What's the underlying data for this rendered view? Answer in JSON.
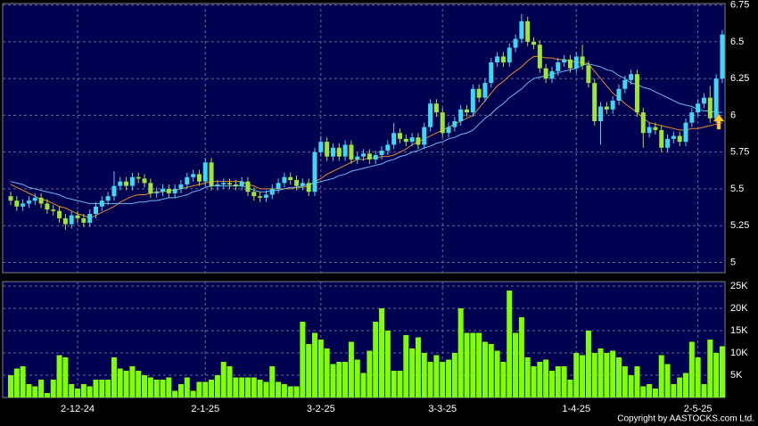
{
  "chart_data": [
    {
      "type": "candlestick",
      "open": [
        5.45,
        5.42,
        5.38,
        5.4,
        5.42,
        5.44,
        5.4,
        5.36,
        5.35,
        5.3,
        5.26,
        5.32,
        5.3,
        5.27,
        5.33,
        5.38,
        5.42,
        5.45,
        5.52,
        5.55,
        5.52,
        5.58,
        5.57,
        5.54,
        5.47,
        5.48,
        5.5,
        5.47,
        5.5,
        5.53,
        5.58,
        5.6,
        5.55,
        5.68,
        5.52,
        5.53,
        5.54,
        5.53,
        5.52,
        5.55,
        5.48,
        5.45,
        5.44,
        5.46,
        5.5,
        5.54,
        5.58,
        5.56,
        5.52,
        5.54,
        5.48,
        5.75,
        5.82,
        5.72,
        5.78,
        5.72,
        5.8,
        5.7,
        5.72,
        5.74,
        5.7,
        5.73,
        5.76,
        5.8,
        5.88,
        5.84,
        5.82,
        5.85,
        5.8,
        5.92,
        6.08,
        6.02,
        5.88,
        5.92,
        5.96,
        6.04,
        6.02,
        6.18,
        6.12,
        6.22,
        6.36,
        6.4,
        6.36,
        6.46,
        6.52,
        6.64,
        6.5,
        6.48,
        6.32,
        6.25,
        6.3,
        6.36,
        6.38,
        6.32,
        6.4,
        6.34,
        6.22,
        5.96,
        6.06,
        6.04,
        6.1,
        6.18,
        6.24,
        6.28,
        6.02,
        5.88,
        5.92,
        5.9,
        5.78,
        5.84,
        5.86,
        5.82,
        5.95,
        6.02,
        6.08,
        6.12,
        5.98,
        6.25
      ],
      "high": [
        5.48,
        5.45,
        5.43,
        5.45,
        5.47,
        5.47,
        5.43,
        5.39,
        5.38,
        5.33,
        5.35,
        5.35,
        5.33,
        5.36,
        5.41,
        5.45,
        5.48,
        5.62,
        5.58,
        5.58,
        5.61,
        5.61,
        5.6,
        5.57,
        5.51,
        5.53,
        5.53,
        5.53,
        5.56,
        5.61,
        5.63,
        5.63,
        5.71,
        5.71,
        5.56,
        5.57,
        5.57,
        5.56,
        5.58,
        5.58,
        5.51,
        5.48,
        5.49,
        5.53,
        5.57,
        5.61,
        5.61,
        5.59,
        5.57,
        5.57,
        5.78,
        5.86,
        5.85,
        5.81,
        5.81,
        5.83,
        5.83,
        5.75,
        5.77,
        5.77,
        5.76,
        5.79,
        5.83,
        5.95,
        5.91,
        5.87,
        5.88,
        5.88,
        5.95,
        6.11,
        6.11,
        6.05,
        5.95,
        5.99,
        6.07,
        6.07,
        6.21,
        6.21,
        6.25,
        6.39,
        6.43,
        6.43,
        6.49,
        6.55,
        6.69,
        6.67,
        6.53,
        6.51,
        6.35,
        6.33,
        6.39,
        6.41,
        6.41,
        6.43,
        6.48,
        6.37,
        6.25,
        6.09,
        6.09,
        6.13,
        6.21,
        6.27,
        6.31,
        6.31,
        6.05,
        5.95,
        5.95,
        5.93,
        5.87,
        5.89,
        5.89,
        5.98,
        6.05,
        6.11,
        6.15,
        6.2,
        6.28,
        6.58
      ],
      "low": [
        5.39,
        5.35,
        5.35,
        5.37,
        5.39,
        5.37,
        5.33,
        5.32,
        5.27,
        5.22,
        5.23,
        5.27,
        5.24,
        5.24,
        5.3,
        5.35,
        5.39,
        5.42,
        5.49,
        5.49,
        5.49,
        5.54,
        5.51,
        5.44,
        5.44,
        5.45,
        5.44,
        5.44,
        5.47,
        5.5,
        5.55,
        5.52,
        5.52,
        5.49,
        5.49,
        5.5,
        5.5,
        5.49,
        5.49,
        5.45,
        5.42,
        5.41,
        5.41,
        5.43,
        5.47,
        5.51,
        5.53,
        5.49,
        5.49,
        5.45,
        5.45,
        5.72,
        5.69,
        5.69,
        5.69,
        5.69,
        5.67,
        5.67,
        5.69,
        5.67,
        5.67,
        5.7,
        5.73,
        5.77,
        5.81,
        5.79,
        5.79,
        5.77,
        5.77,
        5.89,
        5.99,
        5.85,
        5.85,
        5.89,
        5.93,
        5.99,
        5.99,
        6.09,
        6.09,
        6.19,
        6.33,
        6.33,
        6.33,
        6.43,
        6.49,
        6.47,
        6.45,
        6.29,
        6.22,
        6.22,
        6.27,
        6.33,
        6.29,
        6.29,
        6.31,
        6.19,
        5.93,
        5.8,
        6.01,
        6.01,
        6.07,
        6.15,
        6.21,
        5.99,
        5.78,
        5.85,
        5.87,
        5.75,
        5.75,
        5.81,
        5.79,
        5.79,
        5.92,
        5.99,
        6.05,
        5.95,
        5.95,
        6.22
      ],
      "close": [
        5.42,
        5.38,
        5.4,
        5.42,
        5.44,
        5.4,
        5.36,
        5.35,
        5.3,
        5.26,
        5.32,
        5.3,
        5.27,
        5.33,
        5.38,
        5.42,
        5.45,
        5.52,
        5.55,
        5.52,
        5.58,
        5.57,
        5.54,
        5.47,
        5.48,
        5.5,
        5.47,
        5.5,
        5.53,
        5.58,
        5.6,
        5.55,
        5.68,
        5.52,
        5.53,
        5.54,
        5.53,
        5.52,
        5.55,
        5.48,
        5.45,
        5.44,
        5.46,
        5.5,
        5.54,
        5.58,
        5.56,
        5.52,
        5.54,
        5.48,
        5.75,
        5.82,
        5.72,
        5.78,
        5.72,
        5.8,
        5.7,
        5.72,
        5.74,
        5.7,
        5.73,
        5.76,
        5.8,
        5.88,
        5.84,
        5.82,
        5.85,
        5.8,
        5.92,
        6.08,
        6.02,
        5.88,
        5.92,
        5.96,
        6.04,
        6.02,
        6.18,
        6.12,
        6.22,
        6.36,
        6.4,
        6.36,
        6.46,
        6.52,
        6.64,
        6.5,
        6.48,
        6.32,
        6.25,
        6.3,
        6.36,
        6.38,
        6.32,
        6.4,
        6.34,
        6.22,
        5.96,
        6.06,
        6.04,
        6.1,
        6.18,
        6.24,
        6.28,
        6.02,
        5.88,
        5.92,
        5.9,
        5.78,
        5.84,
        5.86,
        5.82,
        5.95,
        6.02,
        6.08,
        6.12,
        5.98,
        6.25,
        6.55
      ],
      "up_color": "#3fd8f2",
      "down_color": "#9ee635",
      "lines": [
        {
          "color": "#e8872a",
          "values": [
            5.53,
            5.51,
            5.49,
            5.47,
            5.45,
            5.43,
            5.42,
            5.4,
            5.38,
            5.37,
            5.35,
            5.33,
            5.32,
            5.3,
            5.32,
            5.34,
            5.36,
            5.38,
            5.41,
            5.43,
            5.45,
            5.46,
            5.46,
            5.47,
            5.48,
            5.48,
            5.49,
            5.49,
            5.5,
            5.51,
            5.52,
            5.53,
            5.54,
            5.55,
            5.55,
            5.55,
            5.55,
            5.55,
            5.55,
            5.53,
            5.52,
            5.5,
            5.5,
            5.5,
            5.5,
            5.5,
            5.5,
            5.51,
            5.51,
            5.52,
            5.55,
            5.57,
            5.6,
            5.62,
            5.64,
            5.66,
            5.68,
            5.7,
            5.7,
            5.71,
            5.71,
            5.72,
            5.72,
            5.73,
            5.75,
            5.77,
            5.8,
            5.82,
            5.84,
            5.86,
            5.88,
            5.9,
            5.92,
            5.94,
            5.96,
            5.98,
            6.0,
            6.05,
            6.1,
            6.15,
            6.2,
            6.23,
            6.27,
            6.3,
            6.33,
            6.37,
            6.4,
            6.4,
            6.39,
            6.39,
            6.38,
            6.38,
            6.37,
            6.36,
            6.36,
            6.35,
            6.3,
            6.25,
            6.2,
            6.15,
            6.12,
            6.08,
            6.05,
            6.02,
            5.98,
            5.95,
            5.94,
            5.93,
            5.92,
            5.91,
            5.9,
            5.9,
            5.91,
            5.91,
            5.92,
            5.93,
            5.94,
            5.95
          ]
        },
        {
          "color": "#6ab8f0",
          "values": [
            5.55,
            5.54,
            5.53,
            5.51,
            5.5,
            5.49,
            5.48,
            5.47,
            5.46,
            5.44,
            5.43,
            5.42,
            5.41,
            5.4,
            5.4,
            5.4,
            5.4,
            5.4,
            5.4,
            5.4,
            5.4,
            5.41,
            5.41,
            5.42,
            5.42,
            5.43,
            5.44,
            5.44,
            5.45,
            5.46,
            5.48,
            5.49,
            5.51,
            5.52,
            5.52,
            5.52,
            5.52,
            5.52,
            5.52,
            5.51,
            5.49,
            5.48,
            5.48,
            5.49,
            5.49,
            5.5,
            5.51,
            5.51,
            5.52,
            5.53,
            5.54,
            5.55,
            5.56,
            5.57,
            5.59,
            5.6,
            5.62,
            5.63,
            5.64,
            5.65,
            5.66,
            5.67,
            5.69,
            5.7,
            5.72,
            5.73,
            5.75,
            5.76,
            5.78,
            5.79,
            5.81,
            5.82,
            5.84,
            5.85,
            5.87,
            5.88,
            5.9,
            5.94,
            5.98,
            6.01,
            6.05,
            6.08,
            6.12,
            6.15,
            6.18,
            6.22,
            6.25,
            6.26,
            6.27,
            6.28,
            6.29,
            6.3,
            6.31,
            6.32,
            6.34,
            6.35,
            6.34,
            6.33,
            6.31,
            6.3,
            6.27,
            6.25,
            6.22,
            6.21,
            6.19,
            6.18,
            6.16,
            6.14,
            6.12,
            6.1,
            6.08,
            6.07,
            6.06,
            6.04,
            6.03,
            6.03,
            6.02,
            6.02
          ]
        }
      ],
      "ylim": [
        4.93,
        6.76
      ],
      "yticks": [
        5,
        5.25,
        5.5,
        5.75,
        6,
        6.25,
        6.5,
        6.75
      ],
      "grid": true
    },
    {
      "type": "bar",
      "values": [
        5,
        6.5,
        7,
        3,
        2.5,
        4,
        1,
        4,
        9.5,
        9,
        3,
        2,
        3,
        2.5,
        4,
        4,
        4,
        9,
        6.5,
        6,
        7,
        6,
        5,
        4.5,
        4,
        4,
        4.5,
        1.5,
        3,
        4.5,
        1.5,
        3.5,
        3.5,
        4,
        5,
        8,
        7,
        4.5,
        4.5,
        4.5,
        4.5,
        4,
        3.5,
        7,
        3.5,
        3,
        2.5,
        2.5,
        17,
        12,
        14.5,
        13,
        11,
        7.5,
        8,
        8,
        12.5,
        8.5,
        5.5,
        10.5,
        17,
        20,
        15,
        6,
        6,
        14,
        11,
        13.5,
        10,
        8,
        9.5,
        8,
        8.5,
        10,
        20,
        14.5,
        14.5,
        14.5,
        12.5,
        12,
        10.5,
        8,
        24,
        14.5,
        18,
        9,
        7,
        8,
        8.5,
        6,
        7,
        7,
        4,
        10,
        9.5,
        15,
        10,
        11,
        10,
        10.5,
        9,
        7,
        5,
        7,
        2.5,
        3,
        2,
        9.5,
        7.5,
        3,
        4.5,
        5.5,
        12.5,
        9,
        3,
        13,
        10,
        11.5
      ],
      "color": "#80ff00",
      "ylim": [
        0,
        26
      ],
      "yticks": [
        {
          "value": 5,
          "label": "5K"
        },
        {
          "value": 10,
          "label": "10K"
        },
        {
          "value": 15,
          "label": "15K"
        },
        {
          "value": 20,
          "label": "20K"
        },
        {
          "value": 25,
          "label": "25K"
        }
      ],
      "xticks": [
        {
          "value": 11,
          "label": "2-12-24"
        },
        {
          "value": 32,
          "label": "2-1-25"
        },
        {
          "value": 51,
          "label": "3-2-25"
        },
        {
          "value": 71,
          "label": "3-3-25"
        },
        {
          "value": 93,
          "label": "1-4-25"
        },
        {
          "value": 113,
          "label": "2-5-25"
        }
      ],
      "grid": true
    }
  ],
  "copyright": "Copyright by AASTOCKS.com Ltd."
}
